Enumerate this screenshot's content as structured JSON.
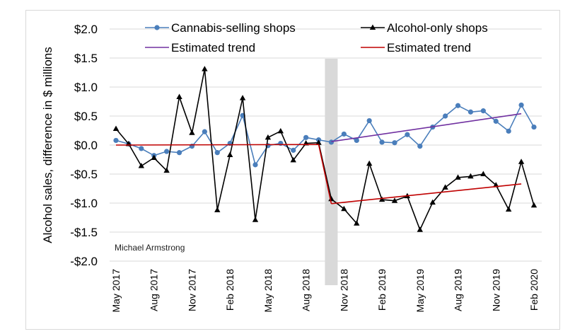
{
  "chart_data": {
    "type": "line",
    "ylabel": "Alcohol sales, difference in $ millions",
    "ylim": [
      -2.0,
      2.0
    ],
    "yticks": [
      "$2.0",
      "$1.5",
      "$1.0",
      "$0.5",
      "$0.0",
      "-$0.5",
      "-$1.0",
      "-$1.5",
      "-$2.0"
    ],
    "ytick_values": [
      2.0,
      1.5,
      1.0,
      0.5,
      0.0,
      -0.5,
      -1.0,
      -1.5,
      -2.0
    ],
    "grid": true,
    "legend_position": "top",
    "x_labels": [
      "May 2017",
      "Aug 2017",
      "Nov 2017",
      "Feb 2018",
      "May 2018",
      "Aug 2018",
      "Nov 2018",
      "Feb 2019",
      "May 2019",
      "Aug 2019",
      "Nov 2019",
      "Feb 2020"
    ],
    "x_months": [
      "2017-05",
      "2017-06",
      "2017-07",
      "2017-08",
      "2017-09",
      "2017-10",
      "2017-11",
      "2017-12",
      "2018-01",
      "2018-02",
      "2018-03",
      "2018-04",
      "2018-05",
      "2018-06",
      "2018-07",
      "2018-08",
      "2018-09",
      "2018-10",
      "2018-11",
      "2018-12",
      "2019-01",
      "2019-02",
      "2019-03",
      "2019-04",
      "2019-05",
      "2019-06",
      "2019-07",
      "2019-08",
      "2019-09",
      "2019-10",
      "2019-11",
      "2019-12",
      "2020-01",
      "2020-02"
    ],
    "shaded_period": "2018-10",
    "series": [
      {
        "name": "Cannabis-selling shops",
        "color": "#4a7ebb",
        "marker": "circle",
        "values": [
          0.08,
          0.02,
          -0.06,
          -0.18,
          -0.11,
          -0.13,
          -0.02,
          0.23,
          -0.13,
          0.03,
          0.51,
          -0.34,
          -0.01,
          0.03,
          -0.09,
          0.13,
          0.09,
          0.05,
          0.19,
          0.08,
          0.42,
          0.05,
          0.04,
          0.18,
          -0.02,
          0.31,
          0.5,
          0.68,
          0.57,
          0.59,
          0.41,
          0.24,
          0.69,
          0.31
        ]
      },
      {
        "name": "Alcohol-only shops",
        "color": "#000000",
        "marker": "triangle",
        "values": [
          0.28,
          0.02,
          -0.36,
          -0.22,
          -0.44,
          0.83,
          0.21,
          1.31,
          -1.12,
          -0.17,
          0.81,
          -1.29,
          0.13,
          0.24,
          -0.26,
          0.03,
          0.04,
          -0.93,
          -1.1,
          -1.35,
          -0.32,
          -0.94,
          -0.96,
          -0.88,
          -1.46,
          -0.99,
          -0.73,
          -0.56,
          -0.54,
          -0.5,
          -0.69,
          -1.11,
          -0.29,
          -1.04
        ]
      },
      {
        "name": "Estimated trend",
        "color": "#7030a0",
        "marker": "none",
        "segments": [
          {
            "x": [
              "2018-10",
              "2020-01"
            ],
            "values": [
              0.06,
              0.54
            ]
          }
        ]
      },
      {
        "name": "Estimated trend",
        "color": "#c00000",
        "marker": "none",
        "segments": [
          {
            "x": [
              "2017-05",
              "2018-09"
            ],
            "values": [
              0.0,
              0.01
            ]
          },
          {
            "x": [
              "2018-09",
              "2018-10"
            ],
            "values": [
              0.01,
              -1.01
            ]
          },
          {
            "x": [
              "2018-10",
              "2020-01"
            ],
            "values": [
              -1.01,
              -0.67
            ]
          }
        ]
      }
    ],
    "annotation": "Michael Armstrong"
  }
}
